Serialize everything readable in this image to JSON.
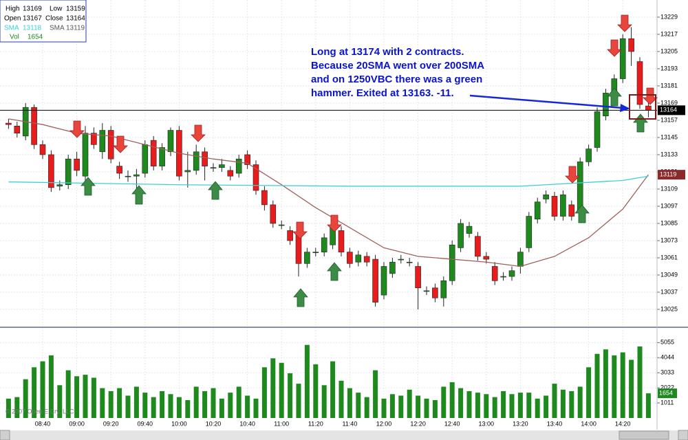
{
  "chart_data": {
    "type": "candlestick",
    "categories": [
      null,
      null,
      null,
      null,
      "08:40",
      null,
      null,
      null,
      "09:00",
      null,
      null,
      null,
      "09:20",
      null,
      null,
      null,
      "09:40",
      null,
      null,
      null,
      "10:00",
      null,
      null,
      null,
      "10:20",
      null,
      null,
      null,
      "10:40",
      null,
      null,
      null,
      "11:00",
      null,
      null,
      null,
      "11:20",
      null,
      null,
      null,
      "11:40",
      null,
      null,
      null,
      "12:00",
      null,
      null,
      null,
      "12:20",
      null,
      null,
      null,
      "12:40",
      null,
      null,
      null,
      "13:00",
      null,
      null,
      null,
      "13:20",
      null,
      null,
      null,
      "13:40",
      null,
      null,
      null,
      "14:00",
      null,
      null,
      null,
      "14:20",
      null,
      null,
      null
    ],
    "open": [
      13155,
      13153,
      13146,
      13166,
      13140,
      13133,
      13111,
      13112,
      13130,
      13118,
      13148,
      13135,
      13150,
      13125,
      13118,
      13118,
      13120,
      13143,
      13125,
      13135,
      13150,
      13121,
      13122,
      13135,
      13124,
      13124,
      13122,
      13120,
      13133,
      13126,
      13108,
      13098,
      13084,
      13080,
      13078,
      13057,
      13065,
      13065,
      13070,
      13080,
      13065,
      13058,
      13062,
      13060,
      13035,
      13050,
      13060,
      13058,
      13055,
      13038,
      13040,
      13033,
      13045,
      13068,
      13078,
      13076,
      13062,
      13055,
      13048,
      13048,
      13055,
      13068,
      13088,
      13102,
      13104,
      13090,
      13098,
      13094,
      13128,
      13138,
      13160,
      13172,
      13186,
      13214,
      13198,
      13167
    ],
    "high": [
      13158,
      13156,
      13169,
      13168,
      13143,
      13136,
      13115,
      13133,
      13135,
      13153,
      13152,
      13155,
      13153,
      13128,
      13122,
      13123,
      13143,
      13146,
      13141,
      13152,
      13153,
      13135,
      13140,
      13138,
      13127,
      13130,
      13125,
      13133,
      13136,
      13129,
      13111,
      13101,
      13087,
      13083,
      13081,
      13068,
      13068,
      13078,
      13085,
      13083,
      13068,
      13066,
      13065,
      13063,
      13058,
      13061,
      13063,
      13061,
      13058,
      13041,
      13043,
      13048,
      13073,
      13088,
      13086,
      13079,
      13065,
      13058,
      13051,
      13055,
      13068,
      13093,
      13103,
      13108,
      13107,
      13108,
      13101,
      13131,
      13140,
      13166,
      13179,
      13189,
      13217,
      13222,
      13201,
      13169
    ],
    "low": [
      13151,
      13145,
      13143,
      13137,
      13130,
      13107,
      13108,
      13109,
      13118,
      13115,
      13137,
      13130,
      13127,
      13116,
      13114,
      13101,
      13117,
      13122,
      13122,
      13132,
      13115,
      13110,
      13119,
      13115,
      13121,
      13121,
      13115,
      13117,
      13123,
      13105,
      13094,
      13082,
      13081,
      13070,
      13048,
      13054,
      13062,
      13062,
      13067,
      13062,
      13054,
      13055,
      13055,
      13027,
      13032,
      13047,
      13057,
      13055,
      13025,
      13035,
      13030,
      13027,
      13042,
      13065,
      13075,
      13059,
      13057,
      13042,
      13045,
      13045,
      13050,
      13065,
      13085,
      13099,
      13087,
      13087,
      13087,
      13091,
      13125,
      13135,
      13157,
      13169,
      13183,
      13195,
      13165,
      13159
    ],
    "close": [
      13154,
      13148,
      13166,
      13140,
      13133,
      13110,
      13112,
      13130,
      13122,
      13148,
      13140,
      13150,
      13130,
      13120,
      13118,
      13119,
      13140,
      13125,
      13138,
      13150,
      13118,
      13122,
      13135,
      13125,
      13124,
      13126,
      13118,
      13130,
      13126,
      13108,
      13098,
      13085,
      13084,
      13073,
      13057,
      13065,
      13065,
      13075,
      13082,
      13065,
      13057,
      13063,
      13058,
      13030,
      13055,
      13058,
      13060,
      13058,
      13040,
      13038,
      13033,
      13045,
      13070,
      13085,
      13083,
      13062,
      13060,
      13045,
      13048,
      13052,
      13065,
      13090,
      13100,
      13105,
      13090,
      13105,
      13090,
      13128,
      13137,
      13163,
      13176,
      13186,
      13214,
      13205,
      13168,
      13164
    ],
    "up_color": "#1e8a1e",
    "down_color": "#e81c1c",
    "ylim": [
      13013,
      13240
    ],
    "yticks": [
      13025,
      13037,
      13049,
      13061,
      13073,
      13085,
      13097,
      13109,
      13121,
      13133,
      13145,
      13157,
      13169,
      13181,
      13193,
      13205,
      13217,
      13229
    ],
    "grid": true,
    "series": [
      {
        "color": "#a0605a",
        "x": [
          0,
          4,
          8,
          12,
          16,
          20,
          24,
          28,
          32,
          36,
          40,
          44,
          48,
          52,
          56,
          60,
          64,
          68,
          72,
          75
        ],
        "values": [
          13158,
          13154,
          13148,
          13146,
          13140,
          13134,
          13130,
          13127,
          13112,
          13096,
          13082,
          13068,
          13062,
          13060,
          13058,
          13055,
          13062,
          13075,
          13095,
          13119
        ]
      },
      {
        "color": "#3ad0d8",
        "x": [
          0,
          20,
          40,
          60,
          72,
          75
        ],
        "values": [
          13114,
          13112,
          13111,
          13111,
          13115,
          13118
        ]
      }
    ],
    "info_labels": [
      "High",
      "Low",
      "Open",
      "Close",
      "SMA",
      "SMA",
      "Vol"
    ],
    "annotation": [
      "Long at 13174 with 2 contracts.",
      "Because 20SMA went over 200SMA",
      "and on 1250VBC there was a green",
      "hammer.  Exited at 13163.  -11."
    ],
    "copyright": "© 2007 Open E Cry, LLC",
    "volume": {
      "values": [
        1300,
        1400,
        2600,
        3400,
        3800,
        4200,
        2200,
        3200,
        2800,
        2900,
        2700,
        2000,
        1800,
        2000,
        1500,
        2100,
        1700,
        1400,
        1800,
        1600,
        1400,
        1200,
        2100,
        1800,
        2000,
        1300,
        1700,
        2100,
        1500,
        1300,
        3400,
        4000,
        3700,
        3000,
        2300,
        4900,
        3600,
        2200,
        3800,
        2500,
        2000,
        1700,
        1400,
        3200,
        1300,
        1600,
        1500,
        1900,
        1500,
        1300,
        1200,
        2100,
        2400,
        2000,
        1800,
        1700,
        1600,
        1400,
        1800,
        1600,
        1700,
        1700,
        1300,
        1500,
        2300,
        1900,
        1800,
        2100,
        3400,
        4300,
        4600,
        4200,
        4400,
        3900,
        4800,
        1654
      ],
      "color": "#1e8a1e",
      "ylim": [
        0,
        5900
      ],
      "yticks": [
        1011,
        2022,
        3033,
        4044,
        5055
      ]
    }
  }
}
